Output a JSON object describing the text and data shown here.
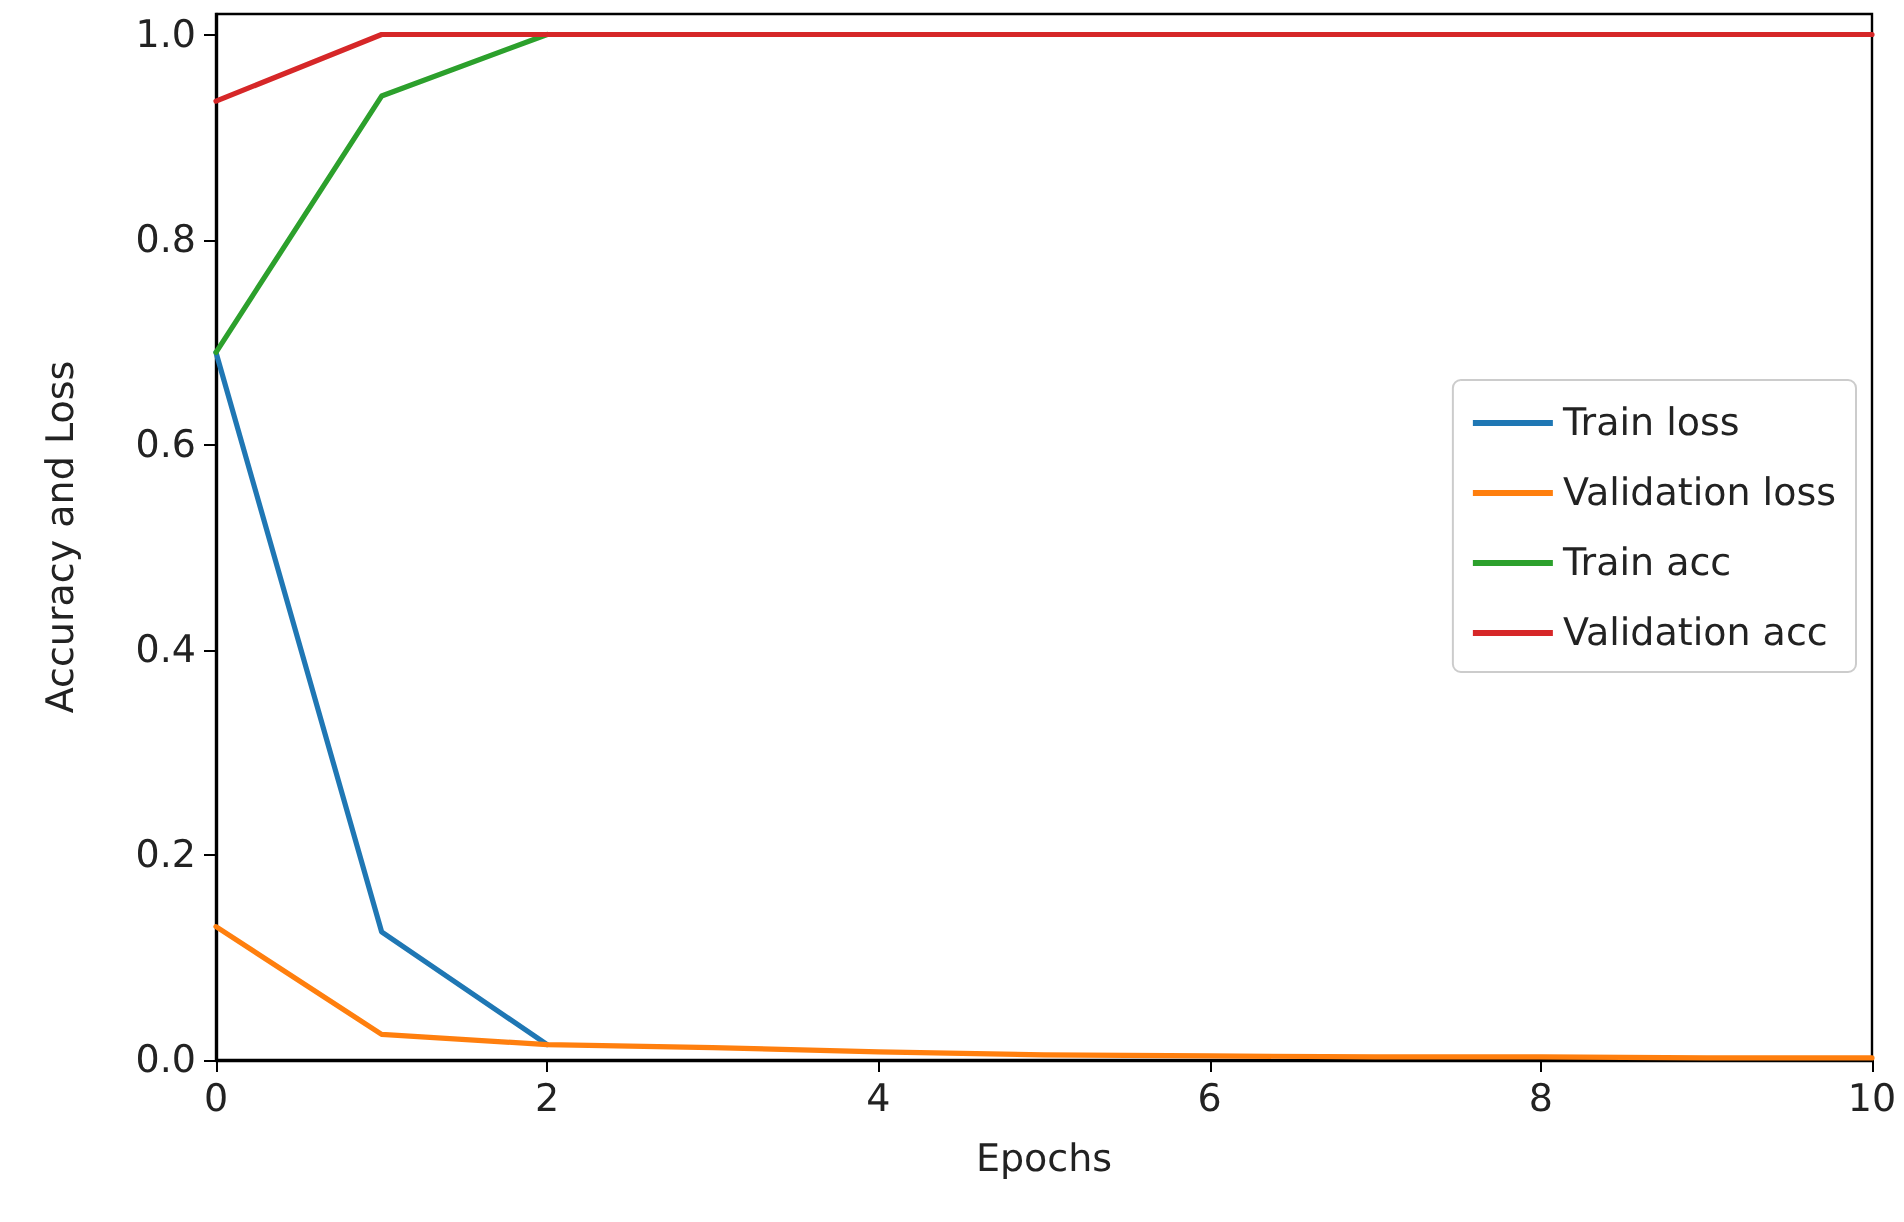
{
  "chart_data": {
    "type": "line",
    "xlabel": "Epochs",
    "ylabel": "Accuracy and Loss",
    "x": [
      0,
      1,
      2,
      3,
      4,
      5,
      6,
      7,
      8,
      9,
      10
    ],
    "series": [
      {
        "name": "Train loss",
        "color": "#1f77b4",
        "values": [
          0.69,
          0.125,
          0.015,
          null,
          null,
          null,
          null,
          null,
          null,
          null,
          null
        ]
      },
      {
        "name": "Validation loss",
        "color": "#ff7f0e",
        "values": [
          0.13,
          0.025,
          0.015,
          0.012,
          0.008,
          0.005,
          0.004,
          0.003,
          0.003,
          0.002,
          0.002
        ]
      },
      {
        "name": "Train acc",
        "color": "#2ca02c",
        "values": [
          0.69,
          0.94,
          1.0,
          null,
          null,
          null,
          null,
          null,
          null,
          null,
          null
        ]
      },
      {
        "name": "Validation acc",
        "color": "#d62728",
        "values": [
          0.935,
          1.0,
          1.0,
          1.0,
          1.0,
          1.0,
          1.0,
          1.0,
          1.0,
          1.0,
          1.0
        ]
      }
    ],
    "xlim": [
      0,
      10
    ],
    "xticks": [
      0,
      2,
      4,
      6,
      8,
      10
    ],
    "ylim": [
      0,
      1.02
    ],
    "yticks": [
      {
        "value": 0,
        "label": "0.0"
      },
      {
        "value": 0.2,
        "label": "0.2"
      },
      {
        "value": 0.4,
        "label": "0.4"
      },
      {
        "value": 0.6,
        "label": "0.6"
      },
      {
        "value": 0.8,
        "label": "0.8"
      },
      {
        "value": 1,
        "label": "1.0"
      }
    ],
    "grid": false,
    "legend": "right",
    "marker": "none",
    "line_style": "solid"
  }
}
